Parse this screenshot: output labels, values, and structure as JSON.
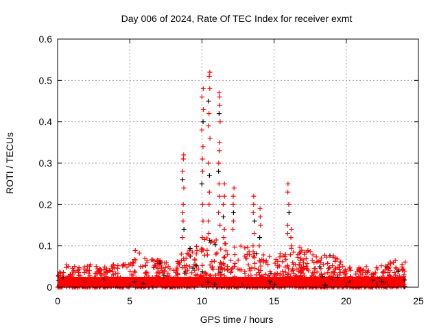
{
  "chart_data": {
    "type": "scatter",
    "title": "Day 006 of 2024, Rate Of TEC Index for receiver exmt",
    "xlabel": "GPS time / hours",
    "ylabel": "ROTI / TECUs",
    "xlim": [
      0,
      25
    ],
    "ylim": [
      0,
      0.6
    ],
    "xticks": [
      0,
      5,
      10,
      15,
      20,
      25
    ],
    "xtick_labels": [
      "0",
      "5",
      "10",
      "15",
      "20",
      "25"
    ],
    "yticks": [
      0,
      0.1,
      0.2,
      0.3,
      0.4,
      0.5,
      0.6
    ],
    "ytick_labels": [
      "0",
      "0.1",
      "0.2",
      "0.3",
      "0.4",
      "0.5",
      "0.6"
    ],
    "grid": true,
    "marker": "plus",
    "colors": {
      "primary": "#ff0000",
      "secondary": "#000000",
      "grid": "#a0a0a0"
    },
    "dense_band_envelope": {
      "x": [
        0,
        1,
        2,
        3,
        4,
        5,
        5.5,
        6,
        7,
        8,
        9,
        10,
        11,
        12,
        13,
        14,
        15,
        16,
        17,
        18,
        19,
        20,
        21,
        22,
        23,
        24
      ],
      "ymax": [
        0.07,
        0.05,
        0.06,
        0.05,
        0.06,
        0.06,
        0.1,
        0.07,
        0.07,
        0.06,
        0.1,
        0.12,
        0.12,
        0.1,
        0.1,
        0.09,
        0.07,
        0.1,
        0.1,
        0.08,
        0.08,
        0.05,
        0.05,
        0.05,
        0.07,
        0.07
      ]
    },
    "spikes": [
      {
        "x": 8.7,
        "y": [
          0.32,
          0.31,
          0.28,
          0.26,
          0.24,
          0.2,
          0.18,
          0.16,
          0.14,
          0.12
        ]
      },
      {
        "x": 10.05,
        "y": [
          0.48,
          0.46,
          0.43,
          0.4,
          0.38,
          0.34,
          0.31,
          0.28,
          0.25,
          0.2,
          0.16,
          0.12
        ]
      },
      {
        "x": 10.5,
        "y": [
          0.52,
          0.51,
          0.48,
          0.45,
          0.42,
          0.39,
          0.36,
          0.3,
          0.27,
          0.23,
          0.2,
          0.16,
          0.13
        ]
      },
      {
        "x": 11.2,
        "y": [
          0.47,
          0.46,
          0.44,
          0.42,
          0.4,
          0.35,
          0.33,
          0.3,
          0.28,
          0.25,
          0.22,
          0.18,
          0.15
        ]
      },
      {
        "x": 11.5,
        "y": [
          0.25,
          0.22,
          0.2,
          0.17,
          0.14,
          0.12
        ]
      },
      {
        "x": 12.2,
        "y": [
          0.24,
          0.22,
          0.2,
          0.18,
          0.16,
          0.14
        ]
      },
      {
        "x": 13.6,
        "y": [
          0.22,
          0.2,
          0.18,
          0.16,
          0.13,
          0.1
        ]
      },
      {
        "x": 14.0,
        "y": [
          0.19,
          0.17,
          0.15,
          0.12,
          0.1
        ]
      },
      {
        "x": 16.0,
        "y": [
          0.25,
          0.23,
          0.2,
          0.18,
          0.15,
          0.13
        ]
      },
      {
        "x": 16.2,
        "y": [
          0.14,
          0.12,
          0.1
        ]
      }
    ]
  }
}
